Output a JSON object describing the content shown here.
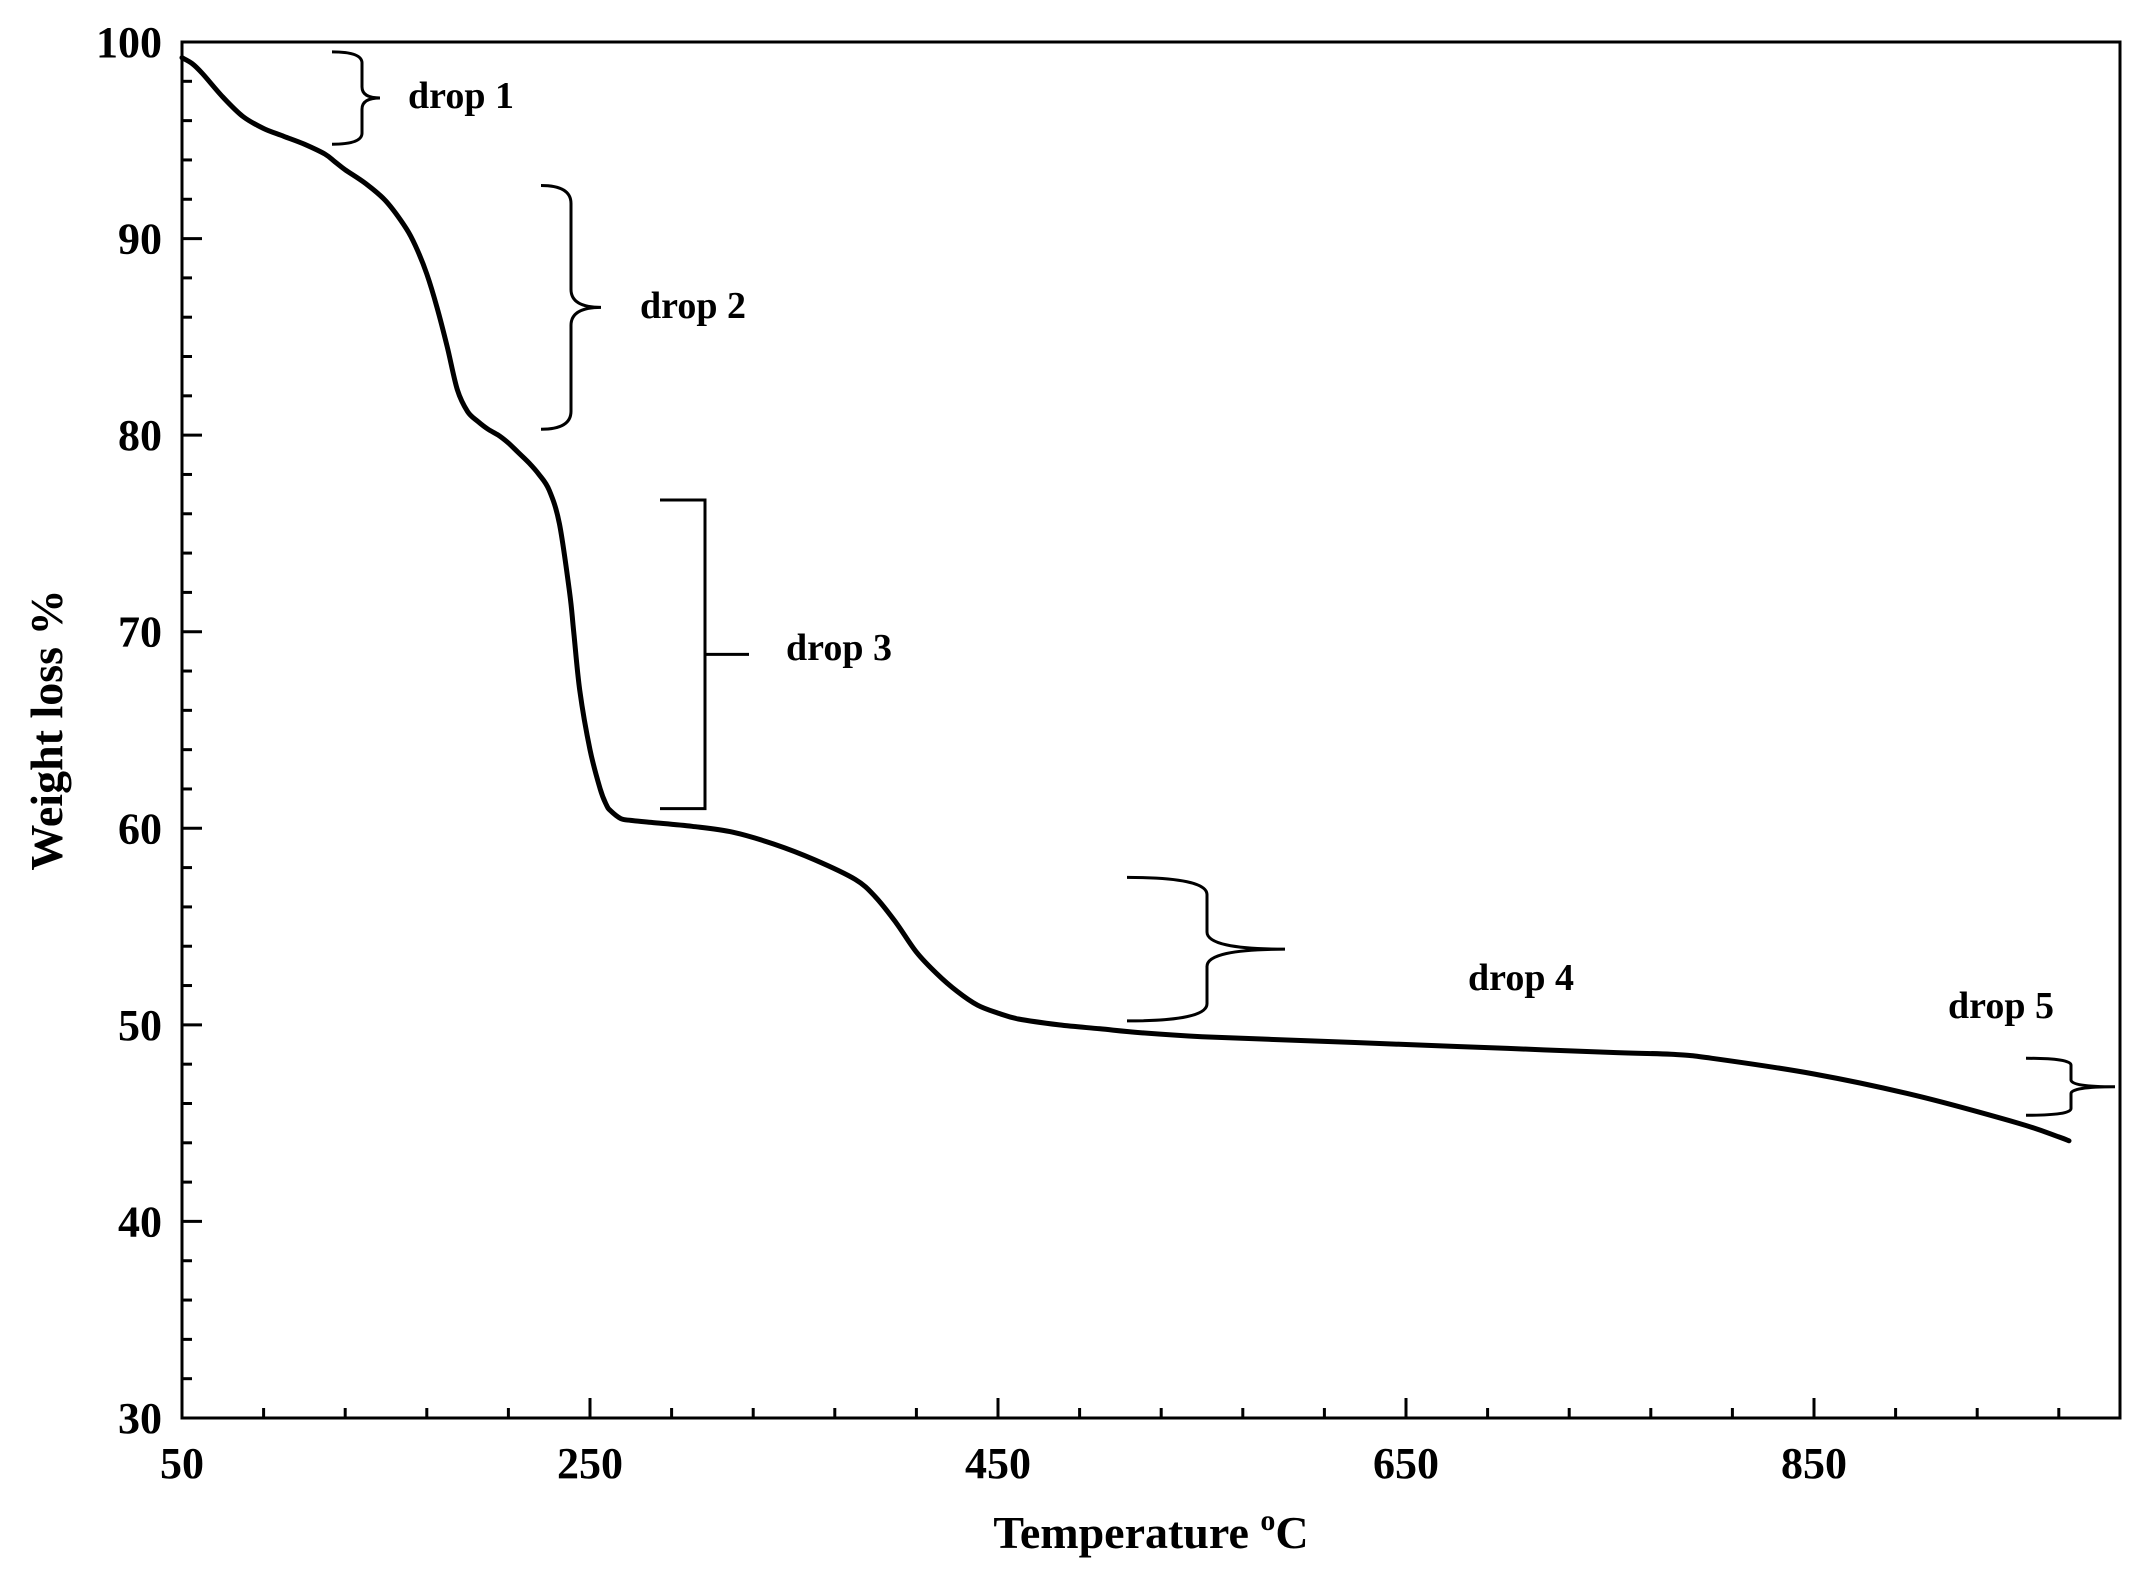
{
  "chart_data": {
    "type": "line",
    "title": "",
    "xlabel": "Temperature",
    "xlabel_sup": "o",
    "xlabel_unit": "C",
    "ylabel": "Weight loss %",
    "xlim": [
      50,
      1000
    ],
    "ylim": [
      30,
      100
    ],
    "xticks": [
      50,
      250,
      450,
      650,
      850
    ],
    "xticks_minor_step": 40,
    "yticks": [
      30,
      40,
      50,
      60,
      70,
      80,
      90,
      100
    ],
    "yticks_minor_step": 2,
    "grid": false,
    "legend": "none",
    "line_color": "#000000",
    "series": [
      {
        "x": [
          50,
          55,
          60,
          70,
          80,
          90,
          100,
          110,
          120,
          125,
          130,
          140,
          150,
          160,
          165,
          170,
          175,
          180,
          185,
          190,
          195,
          200,
          205,
          210,
          215,
          220,
          225,
          230,
          235,
          240,
          242,
          245,
          250,
          255,
          258,
          260,
          265,
          270,
          280,
          300,
          320,
          340,
          360,
          380,
          390,
          400,
          410,
          420,
          430,
          440,
          450,
          460,
          480,
          500,
          520,
          550,
          600,
          650,
          700,
          750,
          780,
          800,
          850,
          900,
          950,
          970,
          975
        ],
        "y": [
          99.2,
          98.9,
          98.4,
          97.2,
          96.2,
          95.6,
          95.2,
          94.8,
          94.3,
          93.9,
          93.5,
          92.8,
          91.9,
          90.5,
          89.5,
          88.2,
          86.5,
          84.5,
          82.3,
          81.2,
          80.7,
          80.3,
          80.0,
          79.6,
          79.1,
          78.6,
          78.0,
          77.2,
          75.5,
          72.0,
          70.0,
          67.0,
          64.0,
          62.0,
          61.2,
          60.9,
          60.5,
          60.4,
          60.3,
          60.1,
          59.8,
          59.2,
          58.4,
          57.4,
          56.5,
          55.2,
          53.7,
          52.6,
          51.7,
          51.0,
          50.6,
          50.3,
          50.0,
          49.8,
          49.6,
          49.4,
          49.2,
          49.0,
          48.8,
          48.6,
          48.5,
          48.3,
          47.5,
          46.4,
          45.0,
          44.3,
          44.1
        ]
      }
    ],
    "annotations": [
      {
        "label": "drop 1",
        "y_top": 99.5,
        "y_bottom": 94.8
      },
      {
        "label": "drop 2",
        "y_top": 92.7,
        "y_bottom": 80.3
      },
      {
        "label": "drop 3",
        "y_top": 76.7,
        "y_bottom": 61.0
      },
      {
        "label": "drop 4",
        "y_top": 57.5,
        "y_bottom": 50.2
      },
      {
        "label": "drop 5",
        "y_top": 48.3,
        "y_bottom": 45.4
      }
    ]
  }
}
